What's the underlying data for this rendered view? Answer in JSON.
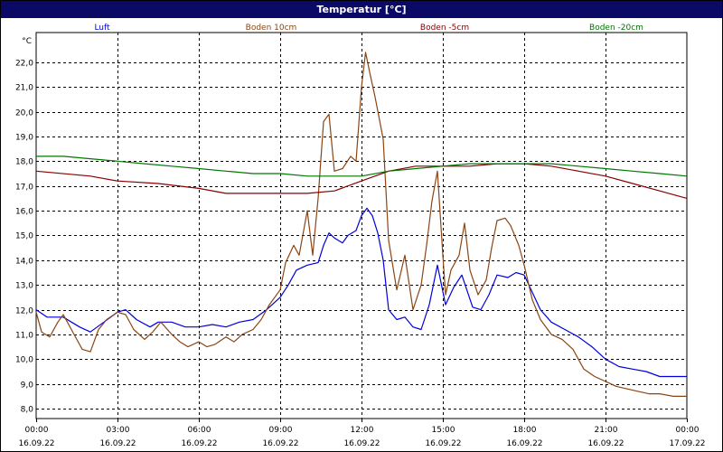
{
  "chart_data": {
    "type": "line",
    "title": "Temperatur [°C]",
    "ylabel": "°C",
    "ylim": [
      7.6,
      23.2
    ],
    "yticks": [
      "8,0",
      "9,0",
      "10,0",
      "11,0",
      "12,0",
      "13,0",
      "14,0",
      "15,0",
      "16,0",
      "17,0",
      "18,0",
      "19,0",
      "20,0",
      "21,0",
      "22,0"
    ],
    "ytick_values": [
      8,
      9,
      10,
      11,
      12,
      13,
      14,
      15,
      16,
      17,
      18,
      19,
      20,
      21,
      22
    ],
    "x_hours_range": [
      0,
      24
    ],
    "xticks": [
      {
        "time": "00:00",
        "date": "16.09.22"
      },
      {
        "time": "03:00",
        "date": "16.09.22"
      },
      {
        "time": "06:00",
        "date": "16.09.22"
      },
      {
        "time": "09:00",
        "date": "16.09.22"
      },
      {
        "time": "12:00",
        "date": "16.09.22"
      },
      {
        "time": "15:00",
        "date": "16.09.22"
      },
      {
        "time": "18:00",
        "date": "16.09.22"
      },
      {
        "time": "21:00",
        "date": "16.09.22"
      },
      {
        "time": "00:00",
        "date": "17.09.22"
      }
    ],
    "grid": true,
    "legend_position": "top",
    "series": [
      {
        "name": "Luft",
        "color": "#0000dd",
        "points": [
          [
            0,
            12.0
          ],
          [
            0.4,
            11.7
          ],
          [
            1.0,
            11.7
          ],
          [
            1.6,
            11.3
          ],
          [
            2.0,
            11.1
          ],
          [
            2.5,
            11.5
          ],
          [
            3.0,
            11.9
          ],
          [
            3.3,
            12.0
          ],
          [
            3.7,
            11.6
          ],
          [
            4.2,
            11.3
          ],
          [
            4.5,
            11.5
          ],
          [
            5.0,
            11.5
          ],
          [
            5.5,
            11.3
          ],
          [
            6.0,
            11.3
          ],
          [
            6.5,
            11.4
          ],
          [
            7.0,
            11.3
          ],
          [
            7.5,
            11.5
          ],
          [
            8.0,
            11.6
          ],
          [
            8.5,
            12.0
          ],
          [
            9.0,
            12.5
          ],
          [
            9.3,
            13.0
          ],
          [
            9.6,
            13.6
          ],
          [
            10.0,
            13.8
          ],
          [
            10.4,
            13.9
          ],
          [
            10.6,
            14.6
          ],
          [
            10.8,
            15.1
          ],
          [
            11.0,
            14.9
          ],
          [
            11.3,
            14.7
          ],
          [
            11.5,
            15.0
          ],
          [
            11.8,
            15.2
          ],
          [
            12.0,
            15.8
          ],
          [
            12.2,
            16.1
          ],
          [
            12.4,
            15.8
          ],
          [
            12.6,
            15.1
          ],
          [
            12.8,
            14.0
          ],
          [
            13.0,
            12.0
          ],
          [
            13.3,
            11.6
          ],
          [
            13.6,
            11.7
          ],
          [
            13.9,
            11.3
          ],
          [
            14.2,
            11.2
          ],
          [
            14.5,
            12.2
          ],
          [
            14.8,
            13.8
          ],
          [
            15.1,
            12.2
          ],
          [
            15.4,
            12.9
          ],
          [
            15.7,
            13.4
          ],
          [
            16.1,
            12.1
          ],
          [
            16.4,
            12.0
          ],
          [
            16.7,
            12.6
          ],
          [
            17.0,
            13.4
          ],
          [
            17.4,
            13.3
          ],
          [
            17.7,
            13.5
          ],
          [
            18.0,
            13.4
          ],
          [
            18.3,
            12.7
          ],
          [
            18.6,
            12.0
          ],
          [
            19.0,
            11.5
          ],
          [
            19.5,
            11.2
          ],
          [
            20.0,
            10.9
          ],
          [
            20.5,
            10.5
          ],
          [
            21.0,
            10.0
          ],
          [
            21.5,
            9.7
          ],
          [
            22.0,
            9.6
          ],
          [
            22.5,
            9.5
          ],
          [
            23.0,
            9.3
          ],
          [
            24.0,
            9.3
          ]
        ]
      },
      {
        "name": "Boden 10cm",
        "color": "#8b4513",
        "points": [
          [
            0,
            11.9
          ],
          [
            0.2,
            11.1
          ],
          [
            0.5,
            10.9
          ],
          [
            0.8,
            11.5
          ],
          [
            1.0,
            11.8
          ],
          [
            1.3,
            11.2
          ],
          [
            1.7,
            10.4
          ],
          [
            2.0,
            10.3
          ],
          [
            2.3,
            11.2
          ],
          [
            2.6,
            11.6
          ],
          [
            3.0,
            11.9
          ],
          [
            3.3,
            11.8
          ],
          [
            3.6,
            11.2
          ],
          [
            4.0,
            10.8
          ],
          [
            4.3,
            11.1
          ],
          [
            4.6,
            11.5
          ],
          [
            5.0,
            11.0
          ],
          [
            5.3,
            10.7
          ],
          [
            5.6,
            10.5
          ],
          [
            6.0,
            10.7
          ],
          [
            6.3,
            10.5
          ],
          [
            6.6,
            10.6
          ],
          [
            7.0,
            10.9
          ],
          [
            7.3,
            10.7
          ],
          [
            7.6,
            11.0
          ],
          [
            8.0,
            11.2
          ],
          [
            8.3,
            11.6
          ],
          [
            8.6,
            12.2
          ],
          [
            9.0,
            12.8
          ],
          [
            9.2,
            13.9
          ],
          [
            9.5,
            14.6
          ],
          [
            9.7,
            14.2
          ],
          [
            10.0,
            16.0
          ],
          [
            10.2,
            14.2
          ],
          [
            10.4,
            16.5
          ],
          [
            10.6,
            19.6
          ],
          [
            10.8,
            19.9
          ],
          [
            11.0,
            17.6
          ],
          [
            11.3,
            17.7
          ],
          [
            11.6,
            18.2
          ],
          [
            11.8,
            18.0
          ],
          [
            12.0,
            21.0
          ],
          [
            12.15,
            22.4
          ],
          [
            12.3,
            21.6
          ],
          [
            12.5,
            20.6
          ],
          [
            12.8,
            18.9
          ],
          [
            13.0,
            14.8
          ],
          [
            13.3,
            12.8
          ],
          [
            13.6,
            14.2
          ],
          [
            13.9,
            12.0
          ],
          [
            14.2,
            13.0
          ],
          [
            14.4,
            14.6
          ],
          [
            14.6,
            16.4
          ],
          [
            14.8,
            17.6
          ],
          [
            15.0,
            14.2
          ],
          [
            15.1,
            12.6
          ],
          [
            15.3,
            13.6
          ],
          [
            15.6,
            14.2
          ],
          [
            15.8,
            15.5
          ],
          [
            16.0,
            13.6
          ],
          [
            16.3,
            12.6
          ],
          [
            16.6,
            13.2
          ],
          [
            16.8,
            14.5
          ],
          [
            17.0,
            15.6
          ],
          [
            17.3,
            15.7
          ],
          [
            17.5,
            15.4
          ],
          [
            17.8,
            14.6
          ],
          [
            18.0,
            13.8
          ],
          [
            18.3,
            12.4
          ],
          [
            18.6,
            11.6
          ],
          [
            19.0,
            11.0
          ],
          [
            19.4,
            10.8
          ],
          [
            19.8,
            10.4
          ],
          [
            20.2,
            9.6
          ],
          [
            20.6,
            9.3
          ],
          [
            21.0,
            9.1
          ],
          [
            21.4,
            8.9
          ],
          [
            21.8,
            8.8
          ],
          [
            22.2,
            8.7
          ],
          [
            22.6,
            8.6
          ],
          [
            23.0,
            8.6
          ],
          [
            23.5,
            8.5
          ],
          [
            24.0,
            8.5
          ]
        ]
      },
      {
        "name": "Boden -5cm",
        "color": "#880000",
        "points": [
          [
            0,
            17.6
          ],
          [
            2.0,
            17.4
          ],
          [
            3.0,
            17.2
          ],
          [
            4.5,
            17.1
          ],
          [
            6.0,
            16.9
          ],
          [
            7.0,
            16.7
          ],
          [
            8.0,
            16.7
          ],
          [
            9.0,
            16.7
          ],
          [
            10.0,
            16.7
          ],
          [
            11.0,
            16.8
          ],
          [
            12.0,
            17.2
          ],
          [
            13.0,
            17.6
          ],
          [
            14.0,
            17.8
          ],
          [
            15.0,
            17.8
          ],
          [
            16.0,
            17.8
          ],
          [
            17.0,
            17.9
          ],
          [
            18.0,
            17.9
          ],
          [
            19.0,
            17.8
          ],
          [
            20.0,
            17.6
          ],
          [
            21.0,
            17.4
          ],
          [
            22.0,
            17.1
          ],
          [
            23.0,
            16.8
          ],
          [
            24.0,
            16.5
          ]
        ]
      },
      {
        "name": "Boden -20cm",
        "color": "#007700",
        "points": [
          [
            0,
            18.2
          ],
          [
            1.0,
            18.2
          ],
          [
            2.0,
            18.1
          ],
          [
            3.0,
            18.0
          ],
          [
            4.0,
            17.9
          ],
          [
            5.0,
            17.8
          ],
          [
            6.0,
            17.7
          ],
          [
            7.0,
            17.6
          ],
          [
            8.0,
            17.5
          ],
          [
            9.0,
            17.5
          ],
          [
            10.0,
            17.4
          ],
          [
            11.0,
            17.4
          ],
          [
            12.0,
            17.4
          ],
          [
            13.0,
            17.6
          ],
          [
            14.0,
            17.7
          ],
          [
            15.0,
            17.8
          ],
          [
            16.0,
            17.9
          ],
          [
            17.0,
            17.9
          ],
          [
            18.0,
            17.9
          ],
          [
            19.0,
            17.9
          ],
          [
            20.0,
            17.8
          ],
          [
            21.0,
            17.7
          ],
          [
            22.0,
            17.6
          ],
          [
            23.0,
            17.5
          ],
          [
            24.0,
            17.4
          ]
        ]
      }
    ]
  }
}
